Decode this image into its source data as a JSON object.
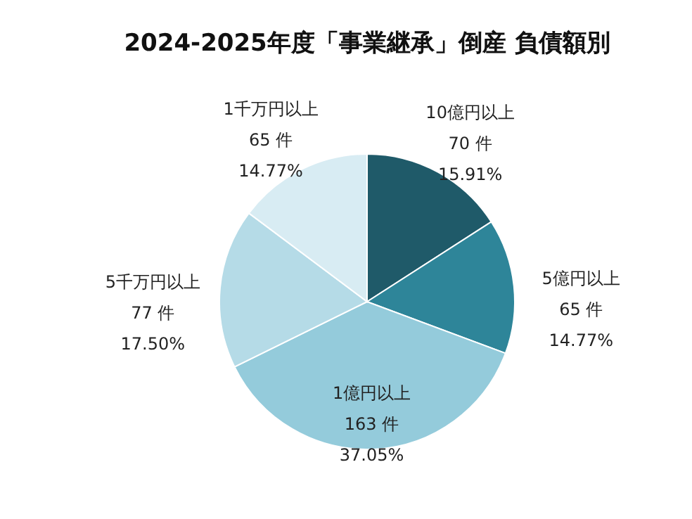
{
  "chart_data": {
    "type": "pie",
    "title": "2024-2025年度「事業継承」倒産 負債額別",
    "categories": [
      "10億円以上",
      "5億円以上",
      "1億円以上",
      "5千万円以上",
      "1千万円以上"
    ],
    "values": [
      70,
      65,
      163,
      77,
      65
    ],
    "value_labels": [
      "70 件\n15.91%",
      "65 件\n14.77%",
      "163 件\n37.05%",
      "77 件\n17.50%",
      "65 件\n14.77%"
    ],
    "colors": [
      "#1f5a69",
      "#2e8599",
      "#94cbdb",
      "#b5dbe7",
      "#d8ecf3"
    ],
    "legend": false
  }
}
